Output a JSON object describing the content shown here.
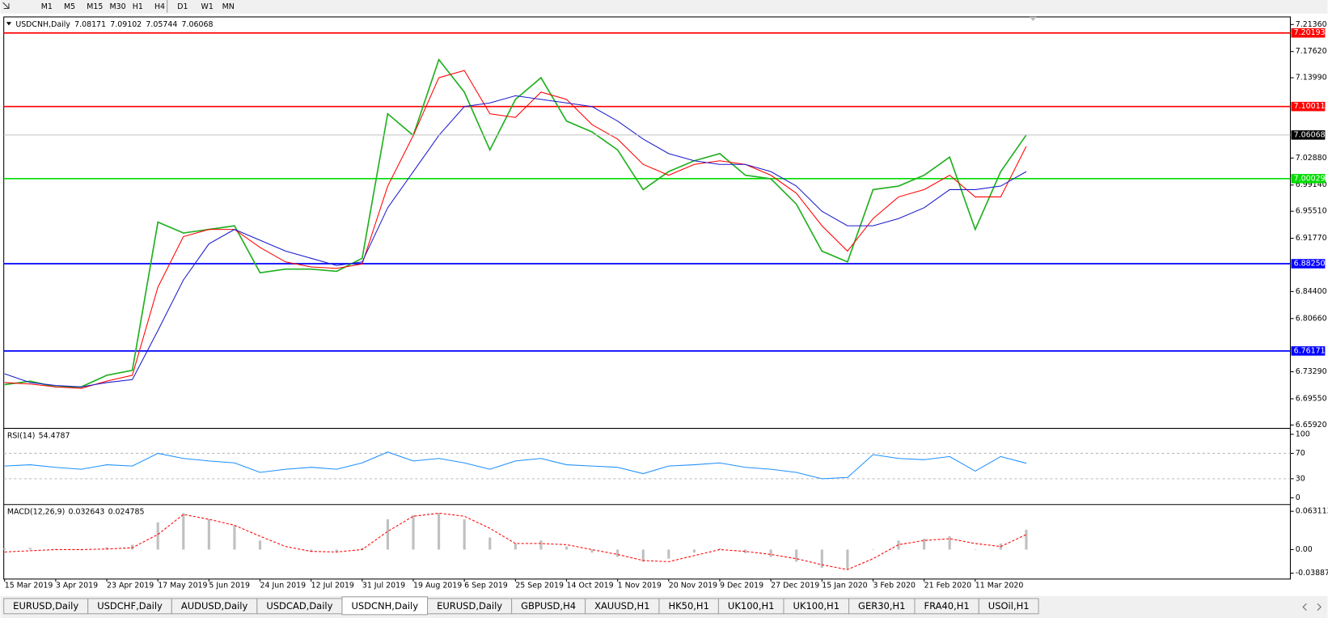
{
  "toolbar": {
    "timeframes": [
      "M1",
      "M5",
      "M15",
      "M30",
      "H1",
      "H4",
      "D1",
      "W1",
      "MN"
    ]
  },
  "chart_data": [
    {
      "type": "line",
      "title": "USDCNH,Daily",
      "open": 7.08171,
      "high": 7.09102,
      "low": 7.05744,
      "categories": [
        "15 Mar 2019",
        null,
        "3 Apr 2019",
        null,
        "23 Apr 2019",
        null,
        "17 May 2019",
        null,
        "5 Jun 2019",
        null,
        "24 Jun 2019",
        null,
        "12 Jul 2019",
        null,
        "31 Jul 2019",
        null,
        "19 Aug 2019",
        null,
        "6 Sep 2019",
        null,
        "25 Sep 2019",
        null,
        "14 Oct 2019",
        null,
        "1 Nov 2019",
        null,
        "20 Nov 2019",
        null,
        "9 Dec 2019",
        null,
        "27 Dec 2019",
        null,
        "15 Jan 2020",
        null,
        "3 Feb 2020",
        null,
        "21 Feb 2020",
        null,
        "11 Mar 2020",
        null,
        null
      ],
      "series": [
        {
          "color": "#22b022",
          "values": [
            6.715,
            6.72,
            6.712,
            6.712,
            6.728,
            6.735,
            6.94,
            6.925,
            6.93,
            6.935,
            6.87,
            6.875,
            6.875,
            6.872,
            6.89,
            7.09,
            7.06,
            7.165,
            7.12,
            7.04,
            7.11,
            7.14,
            7.08,
            7.065,
            7.04,
            6.985,
            7.01,
            7.025,
            7.035,
            7.005,
            7.0,
            6.965,
            6.9,
            6.885,
            6.985,
            6.99,
            7.005,
            7.03,
            6.93,
            7.01,
            7.06068
          ]
        },
        {
          "color": "#ff0000",
          "values": [
            6.718,
            6.716,
            6.712,
            6.71,
            6.72,
            6.728,
            6.85,
            6.92,
            6.93,
            6.93,
            6.905,
            6.885,
            6.878,
            6.876,
            6.882,
            6.99,
            7.06,
            7.14,
            7.15,
            7.09,
            7.085,
            7.12,
            7.11,
            7.075,
            7.055,
            7.02,
            7.005,
            7.02,
            7.025,
            7.02,
            7.005,
            6.98,
            6.935,
            6.9,
            6.945,
            6.975,
            6.985,
            7.005,
            6.975,
            6.975,
            7.045
          ]
        },
        {
          "color": "#1a1acc",
          "values": [
            6.73,
            6.718,
            6.714,
            6.712,
            6.718,
            6.722,
            6.79,
            6.86,
            6.91,
            6.93,
            6.915,
            6.9,
            6.89,
            6.88,
            6.885,
            6.96,
            7.01,
            7.06,
            7.1,
            7.105,
            7.115,
            7.11,
            7.105,
            7.1,
            7.08,
            7.055,
            7.035,
            7.025,
            7.02,
            7.02,
            7.01,
            6.99,
            6.955,
            6.935,
            6.935,
            6.945,
            6.96,
            6.985,
            6.985,
            6.99,
            7.01
          ]
        }
      ],
      "levels": [
        {
          "value": 7.20193,
          "color": "#ff0000"
        },
        {
          "value": 7.10011,
          "color": "#ff0000"
        },
        {
          "value": 7.00029,
          "color": "#00dd00"
        },
        {
          "value": {
            "value": 6.8825,
            "label": "6.88250"
          },
          "color": "#0000ff"
        },
        {
          "value": 6.76171,
          "color": "#0000ff"
        }
      ],
      "ylim": [
        6.6569,
        7.2241
      ],
      "yticks": [
        {
          "value": 7.2136,
          "label": "7.21360"
        },
        {
          "value": 7.1762,
          "label": "7.17620"
        },
        {
          "value": 7.1399,
          "label": "7.13990"
        },
        {
          "value": 7.0288,
          "label": "7.02880"
        },
        {
          "value": 6.9914,
          "label": "6.99140"
        },
        {
          "value": 6.9551,
          "label": "6.95510"
        },
        {
          "value": 6.9177,
          "label": "6.91770"
        },
        {
          "value": 6.844,
          "label": "6.84400"
        },
        {
          "value": 6.8066,
          "label": "6.80660"
        },
        {
          "value": 6.7329,
          "label": "6.73290"
        },
        {
          "value": 6.6955,
          "label": "6.69550"
        },
        {
          "value": 6.6592,
          "label": "6.65920"
        }
      ]
    },
    {
      "type": "line",
      "title": "RSI(14)",
      "series": [
        {
          "color": "#1e90ff",
          "values": [
            50,
            52,
            48,
            45,
            52,
            50,
            70,
            62,
            58,
            55,
            40,
            45,
            48,
            45,
            55,
            72,
            58,
            62,
            55,
            45,
            58,
            62,
            52,
            50,
            48,
            38,
            50,
            52,
            55,
            48,
            45,
            40,
            30,
            32,
            68,
            62,
            60,
            65,
            42,
            65,
            54.4787
          ]
        }
      ],
      "levels": [
        70,
        30
      ],
      "ylim": [
        -8,
        106.7
      ],
      "yticks": [
        100,
        70,
        30,
        0
      ]
    },
    {
      "type": "macd",
      "title": "MACD(12,26,9)",
      "series": [
        {
          "color": "#c0c0c0",
          "kind": "bar",
          "values": [
            0.002,
            0.003,
            0.001,
            -0.001,
            0.004,
            0.008,
            0.045,
            0.06,
            0.05,
            0.04,
            0.015,
            0.0,
            -0.004,
            -0.004,
            0.003,
            0.05,
            0.057,
            0.06,
            0.05,
            0.02,
            0.01,
            0.015,
            0.005,
            -0.005,
            -0.012,
            -0.02,
            -0.015,
            -0.005,
            0.002,
            -0.006,
            -0.012,
            -0.02,
            -0.03,
            -0.032,
            0.0,
            0.015,
            0.018,
            0.022,
            0.0,
            0.01,
            0.032643
          ]
        },
        {
          "color": "#ff0000",
          "kind": "dashed-line",
          "values": [
            -0.004,
            -0.002,
            0.0,
            0.0,
            0.001,
            0.003,
            0.025,
            0.058,
            0.05,
            0.04,
            0.022,
            0.005,
            -0.003,
            -0.004,
            0.0,
            0.03,
            0.055,
            0.06,
            0.055,
            0.035,
            0.01,
            0.01,
            0.008,
            0.0,
            -0.008,
            -0.018,
            -0.02,
            -0.01,
            0.0,
            -0.003,
            -0.008,
            -0.015,
            -0.025,
            -0.033,
            -0.015,
            0.008,
            0.015,
            0.018,
            0.01,
            0.005,
            0.024785
          ]
        }
      ],
      "ylim": [
        -0.048652,
        0.071495
      ],
      "yticks": [
        0.063113,
        {
          "value": 0,
          "label": "0.00"
        },
        -0.038873
      ]
    }
  ],
  "tabs": [
    "EURUSD,Daily",
    "USDCHF,Daily",
    "AUDUSD,Daily",
    "USDCAD,Daily",
    "USDCNH,Daily",
    "EURUSD,Daily",
    "GBPUSD,H4",
    "XAUUSD,H1",
    "HK50,H1",
    "UK100,H1",
    "UK100,H1",
    "GER30,H1",
    "FRA40,H1",
    "USOil,H1"
  ],
  "active_tab": 4
}
